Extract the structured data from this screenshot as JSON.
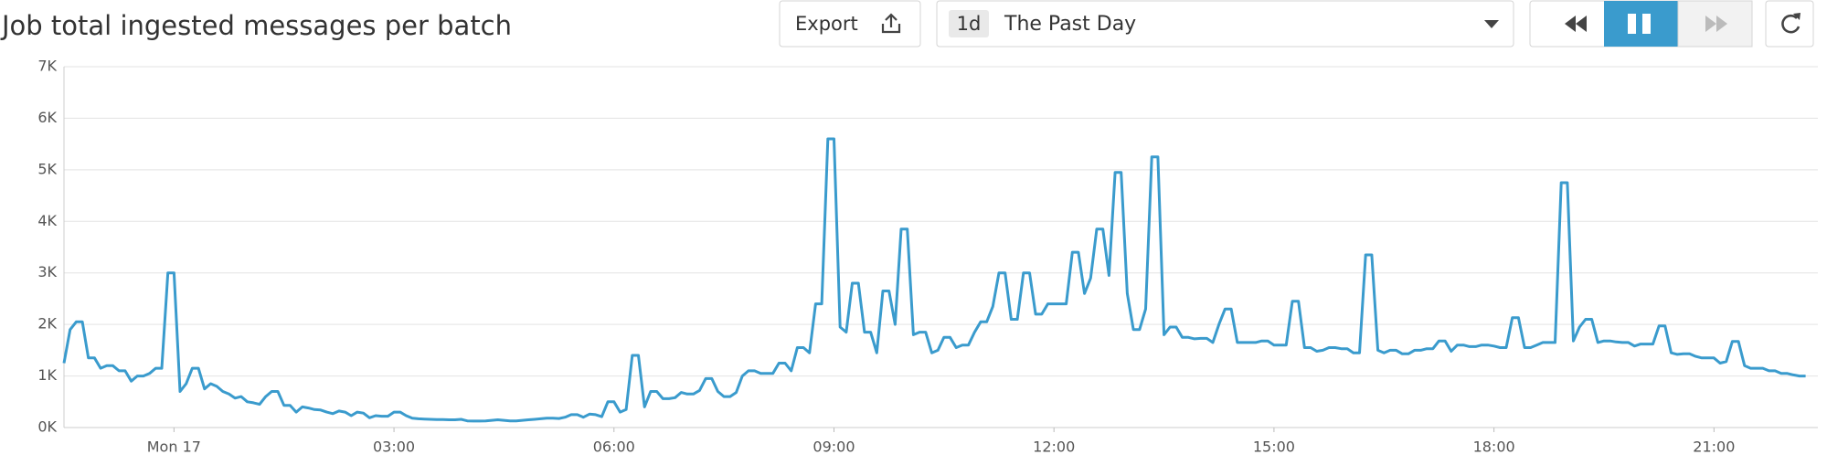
{
  "controls": {
    "export": "Export",
    "range_badge": "1d",
    "range_label": "The Past Day"
  },
  "chart_data": {
    "type": "line",
    "title": "Job total ingested messages per batch",
    "x": [
      -90,
      -85,
      -80,
      -75,
      -70,
      -65,
      -60,
      -55,
      -50,
      -45,
      -40,
      -35,
      -30,
      -25,
      -20,
      -15,
      -10,
      -5,
      0,
      5,
      10,
      15,
      20,
      25,
      30,
      35,
      40,
      45,
      50,
      55,
      60,
      65,
      70,
      75,
      80,
      85,
      90,
      95,
      100,
      105,
      110,
      115,
      120,
      125,
      130,
      135,
      140,
      145,
      150,
      155,
      160,
      165,
      170,
      175,
      180,
      185,
      190,
      195,
      200,
      205,
      210,
      215,
      220,
      225,
      230,
      235,
      240,
      245,
      250,
      255,
      260,
      265,
      270,
      275,
      280,
      285,
      290,
      295,
      300,
      305,
      310,
      315,
      320,
      325,
      330,
      335,
      340,
      345,
      350,
      355,
      360,
      365,
      370,
      375,
      380,
      385,
      390,
      395,
      400,
      405,
      410,
      415,
      420,
      425,
      430,
      435,
      440,
      445,
      450,
      455,
      460,
      465,
      470,
      475,
      480,
      485,
      490,
      495,
      500,
      505,
      510,
      515,
      520,
      525,
      530,
      535,
      540,
      545,
      550,
      555,
      560,
      565,
      570,
      575,
      580,
      585,
      590,
      595,
      600,
      605,
      610,
      615,
      620,
      625,
      630,
      635,
      640,
      645,
      650,
      655,
      660,
      665,
      670,
      675,
      680,
      685,
      690,
      695,
      700,
      705,
      710,
      715,
      720,
      725,
      730,
      735,
      740,
      745,
      750,
      755,
      760,
      765,
      770,
      775,
      780,
      785,
      790,
      795,
      800,
      805,
      810,
      815,
      820,
      825,
      830,
      835,
      840,
      845,
      850,
      855,
      860,
      865,
      870,
      875,
      880,
      885,
      890,
      895,
      900,
      905,
      910,
      915,
      920,
      925,
      930,
      935,
      940,
      945,
      950,
      955,
      960,
      965,
      970,
      975,
      980,
      985,
      990,
      995,
      1000,
      1005,
      1010,
      1015,
      1020,
      1025,
      1030,
      1035,
      1040,
      1045,
      1050,
      1055,
      1060,
      1065,
      1070,
      1075,
      1080,
      1085,
      1090,
      1095,
      1100,
      1105,
      1110,
      1115,
      1120,
      1125,
      1130,
      1135,
      1140,
      1145,
      1150,
      1155,
      1160,
      1165,
      1170,
      1175,
      1180,
      1185,
      1190,
      1195,
      1200,
      1205,
      1210,
      1215,
      1220,
      1225,
      1230,
      1235,
      1240,
      1245,
      1250,
      1255,
      1260,
      1265,
      1270,
      1275,
      1280,
      1285,
      1290,
      1295,
      1300,
      1305,
      1310,
      1315,
      1320,
      1325,
      1330,
      1335
    ],
    "series": [
      {
        "color": "#3a9bcd",
        "values": [
          1250,
          1900,
          2050,
          2050,
          1350,
          1350,
          1150,
          1200,
          1200,
          1100,
          1100,
          900,
          1000,
          1000,
          1050,
          1150,
          1150,
          3000,
          3000,
          700,
          850,
          1150,
          1150,
          750,
          850,
          800,
          700,
          650,
          570,
          600,
          500,
          480,
          450,
          600,
          700,
          700,
          430,
          430,
          300,
          400,
          380,
          350,
          340,
          300,
          270,
          320,
          300,
          230,
          300,
          280,
          190,
          230,
          220,
          220,
          300,
          300,
          230,
          180,
          170,
          165,
          160,
          155,
          155,
          150,
          150,
          160,
          130,
          125,
          125,
          130,
          140,
          150,
          140,
          130,
          130,
          140,
          150,
          160,
          170,
          180,
          180,
          175,
          200,
          250,
          250,
          200,
          260,
          250,
          210,
          500,
          500,
          300,
          350,
          1400,
          1400,
          400,
          700,
          700,
          560,
          560,
          580,
          680,
          650,
          650,
          720,
          950,
          950,
          700,
          600,
          600,
          680,
          1000,
          1100,
          1100,
          1050,
          1050,
          1050,
          1250,
          1250,
          1100,
          1550,
          1550,
          1450,
          2400,
          2400,
          5600,
          5600,
          1950,
          1850,
          2800,
          2800,
          1850,
          1850,
          1450,
          2650,
          2650,
          2000,
          3850,
          3850,
          1800,
          1850,
          1850,
          1450,
          1500,
          1750,
          1750,
          1550,
          1600,
          1600,
          1850,
          2050,
          2050,
          2350,
          3000,
          3000,
          2100,
          2100,
          3000,
          3000,
          2200,
          2200,
          2400,
          2400,
          2400,
          2400,
          3400,
          3400,
          2600,
          2900,
          3850,
          3850,
          2950,
          4950,
          4950,
          2600,
          1900,
          1900,
          2300,
          5250,
          5250,
          1800,
          1950,
          1950,
          1750,
          1750,
          1720,
          1730,
          1730,
          1650,
          2000,
          2300,
          2300,
          1650,
          1650,
          1650,
          1650,
          1680,
          1680,
          1600,
          1600,
          1600,
          2450,
          2450,
          1550,
          1550,
          1480,
          1500,
          1550,
          1550,
          1530,
          1530,
          1450,
          1450,
          3350,
          3350,
          1500,
          1450,
          1500,
          1500,
          1430,
          1430,
          1500,
          1500,
          1530,
          1530,
          1680,
          1680,
          1480,
          1600,
          1600,
          1570,
          1570,
          1600,
          1600,
          1580,
          1550,
          1550,
          2130,
          2130,
          1550,
          1550,
          1600,
          1650,
          1650,
          1650,
          4750,
          4750,
          1680,
          1950,
          2100,
          2100,
          1650,
          1680,
          1680,
          1660,
          1650,
          1650,
          1580,
          1620,
          1620,
          1620,
          1970,
          1970,
          1450,
          1420,
          1430,
          1430,
          1380,
          1350,
          1350,
          1350,
          1250,
          1280,
          1670,
          1670,
          1200,
          1150,
          1150,
          1150,
          1100,
          1100,
          1050,
          1050,
          1020,
          1000,
          1000
        ]
      }
    ],
    "xlim": [
      -90,
      1345
    ],
    "xticks": [
      {
        "value": 0,
        "label": "Mon 17"
      },
      {
        "value": 180,
        "label": "03:00"
      },
      {
        "value": 360,
        "label": "06:00"
      },
      {
        "value": 540,
        "label": "09:00"
      },
      {
        "value": 720,
        "label": "12:00"
      },
      {
        "value": 900,
        "label": "15:00"
      },
      {
        "value": 1080,
        "label": "18:00"
      },
      {
        "value": 1260,
        "label": "21:00"
      }
    ],
    "ylim": [
      0,
      7000
    ],
    "yticks": [
      {
        "value": 0,
        "label": "0K"
      },
      {
        "value": 1000,
        "label": "1K"
      },
      {
        "value": 2000,
        "label": "2K"
      },
      {
        "value": 3000,
        "label": "3K"
      },
      {
        "value": 4000,
        "label": "4K"
      },
      {
        "value": 5000,
        "label": "5K"
      },
      {
        "value": 6000,
        "label": "6K"
      },
      {
        "value": 7000,
        "label": "7K"
      }
    ],
    "grid": true
  }
}
